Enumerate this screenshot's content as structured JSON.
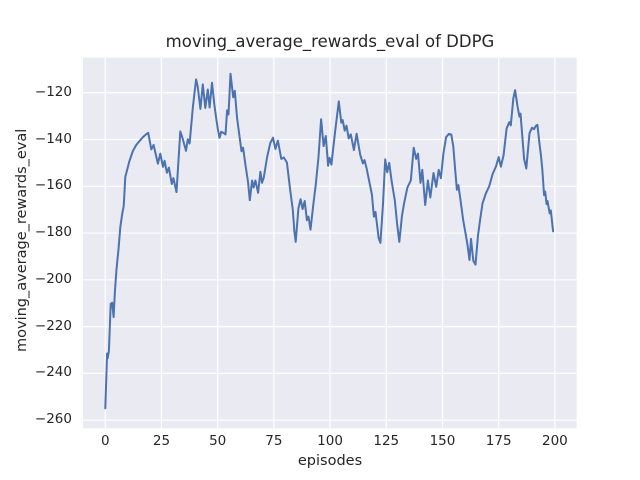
{
  "chart_data": {
    "type": "line",
    "title": "moving_average_rewards_eval of DDPG",
    "xlabel": "episodes",
    "ylabel": "moving_average_rewards_eval",
    "x_ticks": [
      0,
      25,
      50,
      75,
      100,
      125,
      150,
      175,
      200
    ],
    "x_tick_labels": [
      "0",
      "25",
      "50",
      "75",
      "100",
      "125",
      "150",
      "175",
      "200"
    ],
    "y_ticks": [
      -120,
      -140,
      -160,
      -180,
      -200,
      -220,
      -240,
      -260
    ],
    "y_tick_labels": [
      "−120",
      "−140",
      "−160",
      "−180",
      "−200",
      "−220",
      "−240",
      "−260"
    ],
    "xlim": [
      -9.9,
      209.7
    ],
    "ylim": [
      -263.5,
      -105.0
    ],
    "grid": true,
    "legend": false,
    "style": {
      "figure_bg": "#ffffff",
      "panel_bg": "#eaeaf2",
      "grid_color": "#ffffff",
      "text_color": "#262626",
      "line_color": "#4c72b0",
      "line_width": 2
    },
    "series": [
      {
        "name": "moving_average_rewards_eval",
        "color": "#4c72b0",
        "points": [
          [
            0,
            -255
          ],
          [
            0.8,
            -231.5
          ],
          [
            1.1,
            -233.5
          ],
          [
            1.6,
            -230.5
          ],
          [
            2.4,
            -210.3
          ],
          [
            3.1,
            -209.8
          ],
          [
            3.7,
            -216
          ],
          [
            4.3,
            -205
          ],
          [
            5,
            -195.5
          ],
          [
            5.9,
            -186.9
          ],
          [
            6.7,
            -177.5
          ],
          [
            7.6,
            -171.5
          ],
          [
            8.2,
            -168.5
          ],
          [
            8.9,
            -156
          ],
          [
            9.6,
            -153.5
          ],
          [
            10.8,
            -149.1
          ],
          [
            12.3,
            -144.9
          ],
          [
            13.8,
            -142.3
          ],
          [
            15.3,
            -140.6
          ],
          [
            16.8,
            -138.9
          ],
          [
            18.2,
            -137.7
          ],
          [
            19.1,
            -137.1
          ],
          [
            20.5,
            -144.2
          ],
          [
            21.5,
            -142.3
          ],
          [
            22.7,
            -147.4
          ],
          [
            23.4,
            -150.3
          ],
          [
            24.5,
            -146
          ],
          [
            25.7,
            -151.7
          ],
          [
            26.4,
            -149.1
          ],
          [
            27.4,
            -154.2
          ],
          [
            28.3,
            -152
          ],
          [
            29.6,
            -159
          ],
          [
            30.3,
            -156.5
          ],
          [
            31.7,
            -162.5
          ],
          [
            33.4,
            -136.5
          ],
          [
            34.5,
            -139.8
          ],
          [
            35.9,
            -144.8
          ],
          [
            36.7,
            -139.9
          ],
          [
            37.5,
            -141.7
          ],
          [
            39,
            -126
          ],
          [
            40.4,
            -114.3
          ],
          [
            41.1,
            -117.3
          ],
          [
            42.3,
            -126.9
          ],
          [
            43.4,
            -116.4
          ],
          [
            44.5,
            -126.5
          ],
          [
            45.6,
            -118.6
          ],
          [
            46.4,
            -126.3
          ],
          [
            47.5,
            -115.7
          ],
          [
            48.5,
            -124.9
          ],
          [
            49.3,
            -130.6
          ],
          [
            50,
            -135.2
          ],
          [
            50.8,
            -139.3
          ],
          [
            51.6,
            -136.7
          ],
          [
            52.7,
            -137.2
          ],
          [
            53.5,
            -137.8
          ],
          [
            54.2,
            -127.5
          ],
          [
            54.8,
            -129.3
          ],
          [
            55.7,
            -111.9
          ],
          [
            56.9,
            -121.9
          ],
          [
            57.6,
            -119.2
          ],
          [
            58.6,
            -130.5
          ],
          [
            59.5,
            -137
          ],
          [
            60.6,
            -145
          ],
          [
            61.3,
            -143.5
          ],
          [
            62.4,
            -151
          ],
          [
            63.5,
            -158
          ],
          [
            64.3,
            -166
          ],
          [
            65.3,
            -157.5
          ],
          [
            66,
            -160.5
          ],
          [
            66.8,
            -157.5
          ],
          [
            68,
            -162.8
          ],
          [
            69,
            -153.8
          ],
          [
            69.7,
            -158.5
          ],
          [
            70.5,
            -156.2
          ],
          [
            72,
            -147.5
          ],
          [
            73.4,
            -141.5
          ],
          [
            74.6,
            -139.2
          ],
          [
            75.7,
            -144
          ],
          [
            76.8,
            -140.5
          ],
          [
            78.3,
            -148.3
          ],
          [
            79.4,
            -147.7
          ],
          [
            80.8,
            -149.8
          ],
          [
            82.3,
            -162
          ],
          [
            83.4,
            -170
          ],
          [
            84.1,
            -179
          ],
          [
            84.7,
            -183.8
          ],
          [
            85.9,
            -169.5
          ],
          [
            86.9,
            -165.5
          ],
          [
            87.8,
            -169.7
          ],
          [
            88.7,
            -166.3
          ],
          [
            89.7,
            -174.5
          ],
          [
            90.4,
            -173
          ],
          [
            91.3,
            -178.5
          ],
          [
            92.6,
            -167.5
          ],
          [
            93.6,
            -159.5
          ],
          [
            94.8,
            -148
          ],
          [
            96,
            -131.3
          ],
          [
            97.1,
            -142.8
          ],
          [
            98.1,
            -138.5
          ],
          [
            99.1,
            -151.2
          ],
          [
            99.8,
            -147.8
          ],
          [
            100.6,
            -150.7
          ],
          [
            102.2,
            -137
          ],
          [
            103.9,
            -123.7
          ],
          [
            105,
            -132.8
          ],
          [
            105.6,
            -131.7
          ],
          [
            106.5,
            -136.2
          ],
          [
            107.3,
            -134.1
          ],
          [
            108.3,
            -139.5
          ],
          [
            109.2,
            -137.8
          ],
          [
            110.6,
            -144.5
          ],
          [
            111.8,
            -137.5
          ],
          [
            113.4,
            -146.5
          ],
          [
            114.6,
            -150.2
          ],
          [
            115.3,
            -148.8
          ],
          [
            116.3,
            -152.5
          ],
          [
            117.4,
            -157.8
          ],
          [
            118.6,
            -163.5
          ],
          [
            119.5,
            -173
          ],
          [
            120.2,
            -171
          ],
          [
            121.6,
            -182
          ],
          [
            122.4,
            -184.2
          ],
          [
            123.5,
            -168.3
          ],
          [
            124.5,
            -148.5
          ],
          [
            125.4,
            -154
          ],
          [
            126.3,
            -150
          ],
          [
            127.4,
            -158
          ],
          [
            128.8,
            -166
          ],
          [
            129.8,
            -176
          ],
          [
            130.8,
            -183.8
          ],
          [
            132,
            -172.5
          ],
          [
            132.9,
            -167.5
          ],
          [
            134.4,
            -160.5
          ],
          [
            135.9,
            -157.5
          ],
          [
            137.2,
            -143.5
          ],
          [
            138.3,
            -148.3
          ],
          [
            139.1,
            -146
          ],
          [
            140.2,
            -158.5
          ],
          [
            141,
            -153
          ],
          [
            142.3,
            -168
          ],
          [
            143.5,
            -157.5
          ],
          [
            144.6,
            -164.8
          ],
          [
            146,
            -154.3
          ],
          [
            147.2,
            -160.2
          ],
          [
            148.3,
            -153
          ],
          [
            149.3,
            -156.5
          ],
          [
            150.4,
            -146
          ],
          [
            151.6,
            -139
          ],
          [
            152.8,
            -137.6
          ],
          [
            153.9,
            -137.9
          ],
          [
            154.8,
            -143
          ],
          [
            155.6,
            -152.5
          ],
          [
            156.4,
            -161.5
          ],
          [
            157.1,
            -159.5
          ],
          [
            158.1,
            -166.5
          ],
          [
            159.2,
            -174.5
          ],
          [
            160.4,
            -181
          ],
          [
            161.1,
            -184.8
          ],
          [
            162,
            -191.5
          ],
          [
            162.7,
            -182.5
          ],
          [
            163.7,
            -191.8
          ],
          [
            164.7,
            -193.5
          ],
          [
            165.8,
            -181
          ],
          [
            166.6,
            -175.3
          ],
          [
            167.8,
            -167.3
          ],
          [
            169.3,
            -163
          ],
          [
            170.8,
            -160
          ],
          [
            172.3,
            -154.8
          ],
          [
            173.8,
            -151.5
          ],
          [
            175,
            -147.5
          ],
          [
            176,
            -151.6
          ],
          [
            177.2,
            -146.6
          ],
          [
            178.5,
            -135.3
          ],
          [
            179.7,
            -132.6
          ],
          [
            180.4,
            -133.9
          ],
          [
            181.5,
            -122.5
          ],
          [
            182.3,
            -118.9
          ],
          [
            183.4,
            -126
          ],
          [
            184.2,
            -130.2
          ],
          [
            184.7,
            -128.9
          ],
          [
            186.3,
            -148.3
          ],
          [
            187.3,
            -152.4
          ],
          [
            188.7,
            -137.3
          ],
          [
            189.8,
            -135
          ],
          [
            190.7,
            -135.6
          ],
          [
            191.6,
            -134.1
          ],
          [
            192.2,
            -133.7
          ],
          [
            193,
            -140.8
          ],
          [
            193.8,
            -147
          ],
          [
            194.4,
            -152.7
          ],
          [
            195.2,
            -163.8
          ],
          [
            195.7,
            -162.3
          ],
          [
            196.3,
            -167.6
          ],
          [
            196.7,
            -166.3
          ],
          [
            197.7,
            -171.6
          ],
          [
            198.2,
            -170.3
          ],
          [
            199.2,
            -179.3
          ]
        ]
      }
    ]
  }
}
